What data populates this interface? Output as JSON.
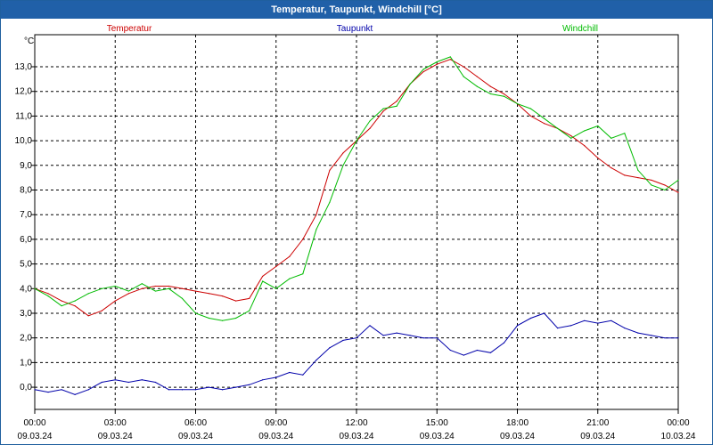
{
  "window": {
    "title": "Temperatur, Taupunkt, Windchill [°C]"
  },
  "chart_data": {
    "type": "line",
    "title": "Temperatur, Taupunkt, Windchill [°C]",
    "ylabel": "°C",
    "ylim": [
      -0.9,
      14.3
    ],
    "yticks": [
      0.0,
      1.0,
      2.0,
      3.0,
      4.0,
      5.0,
      6.0,
      7.0,
      8.0,
      9.0,
      10.0,
      11.0,
      12.0,
      13.0
    ],
    "yticklabels": [
      "0,0",
      "1,0",
      "2,0",
      "3,0",
      "4,0",
      "5,0",
      "6,0",
      "7,0",
      "8,0",
      "9,0",
      "10,0",
      "11,0",
      "12,0",
      "13,0"
    ],
    "xlim": [
      0,
      24
    ],
    "xticks": [
      0,
      3,
      6,
      9,
      12,
      15,
      18,
      21,
      24
    ],
    "xticklabels_time": [
      "00:00",
      "03:00",
      "06:00",
      "09:00",
      "12:00",
      "15:00",
      "18:00",
      "21:00",
      "00:00"
    ],
    "xticklabels_date": [
      "09.03.24",
      "09.03.24",
      "09.03.24",
      "09.03.24",
      "09.03.24",
      "09.03.24",
      "09.03.24",
      "09.03.24",
      "10.03.24"
    ],
    "grid": true,
    "legend_placement": "top",
    "series": [
      {
        "name": "Temperatur",
        "color": "#cc0000",
        "x": [
          0,
          0.5,
          1,
          1.5,
          2,
          2.5,
          3,
          3.5,
          4,
          4.5,
          5,
          5.5,
          6,
          6.5,
          7,
          7.5,
          8,
          8.5,
          9,
          9.5,
          10,
          10.5,
          11,
          11.5,
          12,
          12.5,
          13,
          13.5,
          14,
          14.5,
          15,
          15.5,
          16,
          16.5,
          17,
          17.5,
          18,
          18.5,
          19,
          19.5,
          20,
          20.5,
          21,
          21.5,
          22,
          22.5,
          23,
          23.5,
          24
        ],
        "y": [
          4.0,
          3.8,
          3.5,
          3.3,
          2.9,
          3.1,
          3.5,
          3.8,
          4.0,
          4.1,
          4.1,
          4.0,
          3.9,
          3.8,
          3.7,
          3.5,
          3.6,
          4.5,
          4.9,
          5.3,
          6.0,
          7.0,
          8.8,
          9.5,
          10.0,
          10.5,
          11.2,
          11.6,
          12.3,
          12.8,
          13.1,
          13.3,
          13.0,
          12.6,
          12.2,
          11.9,
          11.5,
          11.0,
          10.7,
          10.5,
          10.2,
          9.8,
          9.3,
          8.9,
          8.6,
          8.5,
          8.4,
          8.2,
          7.9
        ]
      },
      {
        "name": "Taupunkt",
        "color": "#0000aa",
        "x": [
          0,
          0.5,
          1,
          1.5,
          2,
          2.5,
          3,
          3.5,
          4,
          4.5,
          5,
          5.5,
          6,
          6.5,
          7,
          7.5,
          8,
          8.5,
          9,
          9.5,
          10,
          10.5,
          11,
          11.5,
          12,
          12.5,
          13,
          13.5,
          14,
          14.5,
          15,
          15.5,
          16,
          16.5,
          17,
          17.5,
          18,
          18.5,
          19,
          19.5,
          20,
          20.5,
          21,
          21.5,
          22,
          22.5,
          23,
          23.5,
          24
        ],
        "y": [
          -0.1,
          -0.2,
          -0.1,
          -0.3,
          -0.1,
          0.2,
          0.3,
          0.2,
          0.3,
          0.2,
          -0.1,
          -0.1,
          -0.1,
          0.0,
          -0.1,
          0.0,
          0.1,
          0.3,
          0.4,
          0.6,
          0.5,
          1.1,
          1.6,
          1.9,
          2.0,
          2.5,
          2.1,
          2.2,
          2.1,
          2.0,
          2.0,
          1.5,
          1.3,
          1.5,
          1.4,
          1.8,
          2.5,
          2.8,
          3.0,
          2.4,
          2.5,
          2.7,
          2.6,
          2.7,
          2.4,
          2.2,
          2.1,
          2.0,
          2.0
        ]
      },
      {
        "name": "Windchill",
        "color": "#00bb00",
        "x": [
          0,
          0.5,
          1,
          1.5,
          2,
          2.5,
          3,
          3.5,
          4,
          4.5,
          5,
          5.5,
          6,
          6.5,
          7,
          7.5,
          8,
          8.5,
          9,
          9.5,
          10,
          10.5,
          11,
          11.5,
          12,
          12.5,
          13,
          13.5,
          14,
          14.5,
          15,
          15.5,
          16,
          16.5,
          17,
          17.5,
          18,
          18.5,
          19,
          19.5,
          20,
          20.5,
          21,
          21.5,
          22,
          22.5,
          23,
          23.5,
          24
        ],
        "y": [
          4.0,
          3.7,
          3.3,
          3.5,
          3.8,
          4.0,
          4.1,
          3.9,
          4.2,
          3.9,
          4.0,
          3.6,
          3.0,
          2.8,
          2.7,
          2.8,
          3.1,
          4.3,
          4.0,
          4.4,
          4.6,
          6.4,
          7.5,
          9.0,
          10.0,
          10.8,
          11.3,
          11.4,
          12.3,
          12.9,
          13.2,
          13.4,
          12.6,
          12.2,
          11.9,
          11.8,
          11.5,
          11.3,
          10.9,
          10.5,
          10.1,
          10.4,
          10.6,
          10.1,
          10.3,
          8.8,
          8.2,
          8.0,
          8.4
        ]
      }
    ]
  }
}
